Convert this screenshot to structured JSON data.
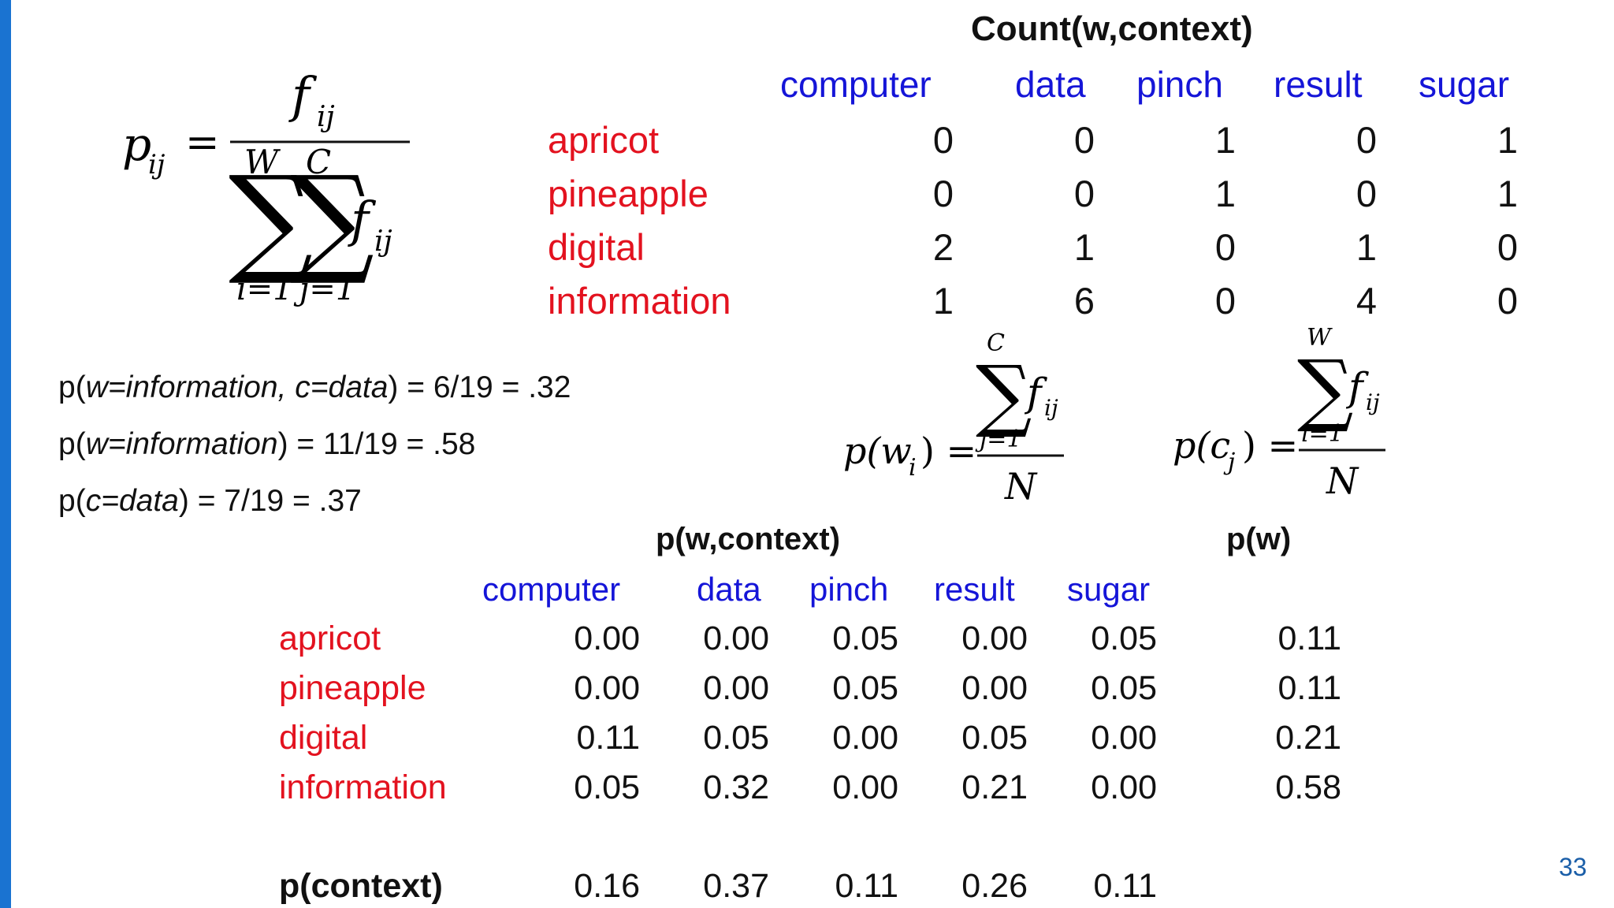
{
  "accent": "#1a73d1",
  "row_color": "#e3121f",
  "col_color": "#1515d8",
  "formula_pij": {
    "lhs": "p",
    "lhs_sub": "ij",
    "eq": "=",
    "num": "f",
    "num_sub": "ij",
    "sum_top1": "W",
    "sum_top2": "C",
    "sum_bot1": "i=1",
    "sum_bot2": "j=1",
    "den_f": "f",
    "den_sub": "ij",
    "sigma": "∑"
  },
  "count_table": {
    "title": "Count(w,context)",
    "columns": [
      "computer",
      "data",
      "pinch",
      "result",
      "sugar"
    ],
    "rows": [
      {
        "label": "apricot",
        "values": [
          "0",
          "0",
          "1",
          "0",
          "1"
        ]
      },
      {
        "label": "pineapple",
        "values": [
          "0",
          "0",
          "1",
          "0",
          "1"
        ]
      },
      {
        "label": "digital",
        "values": [
          "2",
          "1",
          "0",
          "1",
          "0"
        ]
      },
      {
        "label": "information",
        "values": [
          "1",
          "6",
          "0",
          "4",
          "0"
        ]
      }
    ]
  },
  "examples": {
    "line1": {
      "pre": "p(",
      "w": "w=information, c=data",
      "post": ") = 6/19  = .32"
    },
    "line2": {
      "pre": "p(",
      "w": "w=information",
      "post": ") = 11/19   = .58"
    },
    "line3": {
      "pre": "p(",
      "w": "c=data",
      "post": ") = 7/19  = .37"
    }
  },
  "formula_pwi": {
    "lhs": "p(w",
    "sub": "i",
    "rhs": ") =",
    "top": "C",
    "bot": "j=1",
    "f": "f",
    "fsub": "ij",
    "den": "N",
    "sigma": "∑"
  },
  "formula_pcj": {
    "lhs": "p(c",
    "sub": "j",
    "rhs": ") =",
    "top": "W",
    "bot": "i=1",
    "f": "f",
    "fsub": "ij",
    "den": "N",
    "sigma": "∑"
  },
  "prob_table": {
    "title": "p(w,context)",
    "pw_title": "p(w)",
    "columns": [
      "computer",
      "data",
      "pinch",
      "result",
      "sugar"
    ],
    "rows": [
      {
        "label": "apricot",
        "values": [
          "0.00",
          "0.00",
          "0.05",
          "0.00",
          "0.05"
        ],
        "pw": "0.11"
      },
      {
        "label": "pineapple",
        "values": [
          "0.00",
          "0.00",
          "0.05",
          "0.00",
          "0.05"
        ],
        "pw": "0.11"
      },
      {
        "label": "digital",
        "values": [
          "0.11",
          "0.05",
          "0.00",
          "0.05",
          "0.00"
        ],
        "pw": "0.21"
      },
      {
        "label": "information",
        "values": [
          "0.05",
          "0.32",
          "0.00",
          "0.21",
          "0.00"
        ],
        "pw": "0.58"
      }
    ],
    "context_label": "p(context)",
    "context_values": [
      "0.16",
      "0.37",
      "0.11",
      "0.26",
      "0.11"
    ]
  },
  "slide_number": "33"
}
